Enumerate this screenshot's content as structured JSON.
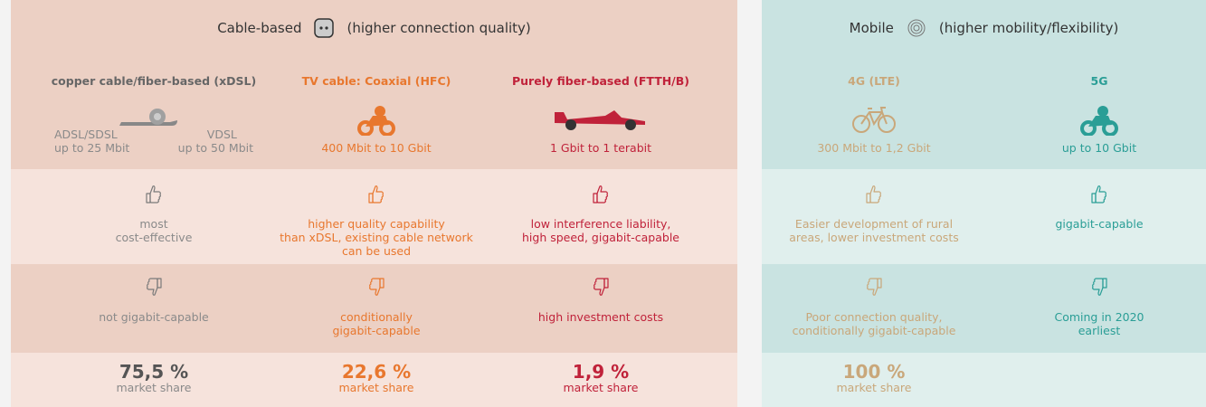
{
  "panels": [
    {
      "title": "Cable-based",
      "subtitle": "(higher connection quality)",
      "columns": [
        {
          "name": "copper cable/fiber-based (xDSL)",
          "speed": [
            [
              "ADSL/SDSL",
              "up to 25 Mbit"
            ],
            [
              "VDSL",
              "up to 50 Mbit"
            ]
          ],
          "pros": [
            "most",
            "cost-effective"
          ],
          "cons": [
            "not gigabit-capable"
          ],
          "share": "75,5 %",
          "share_label": "market share"
        },
        {
          "name": "TV cable: Coaxial (HFC)",
          "speed": [
            [
              "400 Mbit to 10 Gbit"
            ]
          ],
          "pros": [
            "higher quality capability",
            "than xDSL, existing cable network",
            "can be used"
          ],
          "cons": [
            "conditionally",
            "gigabit-capable"
          ],
          "share": "22,6 %",
          "share_label": "market share"
        },
        {
          "name": "Purely fiber-based (FTTH/B)",
          "speed": [
            [
              "1 Gbit to 1 terabit"
            ]
          ],
          "pros": [
            "low interference liability,",
            "high speed, gigabit-capable"
          ],
          "cons": [
            "high investment costs"
          ],
          "share": "1,9 %",
          "share_label": "market share"
        }
      ]
    },
    {
      "title": "Mobile",
      "subtitle": "(higher mobility/flexibility)",
      "columns": [
        {
          "name": "4G (LTE)",
          "speed": [
            [
              "300 Mbit to 1,2 Gbit"
            ]
          ],
          "pros": [
            "Easier development of rural",
            "areas, lower investment costs"
          ],
          "cons": [
            "Poor connection quality,",
            "conditionally gigabit-capable"
          ],
          "share": "100 %",
          "share_label": "market share"
        },
        {
          "name": "5G",
          "speed": [
            [
              "up to 10 Gbit"
            ]
          ],
          "pros": [
            "gigabit-capable"
          ],
          "cons": [
            "Coming in 2020",
            "earliest"
          ]
        }
      ]
    }
  ]
}
